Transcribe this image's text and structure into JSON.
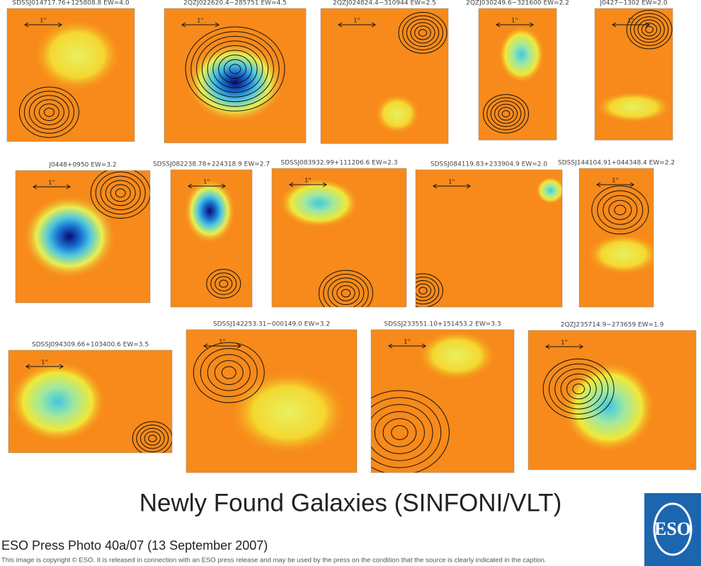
{
  "panels": [
    {
      "label": "SDSSJ014717.76+125808.8 EW=4.0",
      "scale": "1''"
    },
    {
      "label": "2QZJ022620.4−285751 EW=4.5",
      "scale": "1''"
    },
    {
      "label": "2QZJ024824.4−310944 EW=2.5",
      "scale": "1''"
    },
    {
      "label": "2QZJ030249.6−321600 EW=2.2",
      "scale": "1''"
    },
    {
      "label": "J0427−1302 EW=2.0",
      "scale": "1''"
    },
    {
      "label": "J0448+0950 EW=3.2",
      "scale": "1''"
    },
    {
      "label": "SDSSJ082238.78+224318.9 EW=2.7",
      "scale": "1''"
    },
    {
      "label": "SDSSJ083932.99+111206.6 EW=2.3",
      "scale": "1''"
    },
    {
      "label": "SDSSJ084119.83+233904.9 EW=2.0",
      "scale": "1''"
    },
    {
      "label": "SDSSJ144104.91+044348.4 EW=2.2",
      "scale": "1''"
    },
    {
      "label": "SDSSJ094309.66+103400.6 EW=3.5",
      "scale": "1''"
    },
    {
      "label": "SDSSJ142253.31−000149.0 EW=3.2",
      "scale": "1''"
    },
    {
      "label": "SDSSJ233551.10+151453.2 EW=3.3",
      "scale": "1''"
    },
    {
      "label": "2QZJ235714.9−273659 EW=1.9",
      "scale": "1''"
    }
  ],
  "title": "Newly Found Galaxies (SINFONI/VLT)",
  "caption": "ESO Press Photo 40a/07 (13 September 2007)",
  "copyright": "This image is copyright © ESO. It is released in connection with an ESO press release and may be used by the press on the condition that the source is clearly indicated in the caption.",
  "logo": "ESO"
}
